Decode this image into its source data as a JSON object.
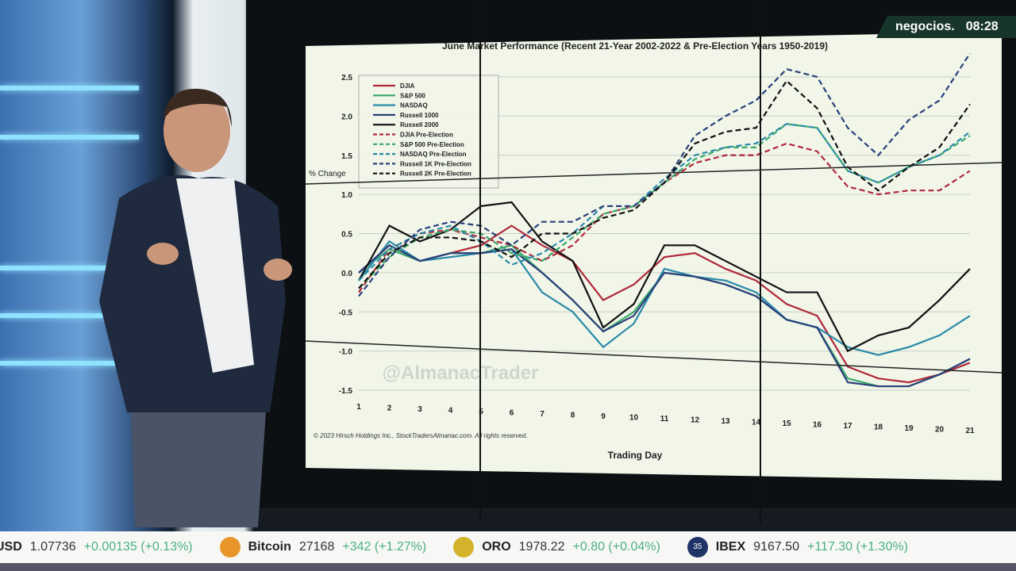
{
  "broadcast": {
    "channel": "negocios.",
    "time": "08:28"
  },
  "ticker": [
    {
      "name": "USD",
      "value": "1.07736",
      "change": "+0.00135 (+0.13%)",
      "icon": "currency-icon"
    },
    {
      "name": "Bitcoin",
      "value": "27168",
      "change": "+342 (+1.27%)",
      "icon": "bitcoin-icon",
      "color": "#e8962a"
    },
    {
      "name": "ORO",
      "value": "1978.22",
      "change": "+0.80 (+0.04%)",
      "icon": "gold-icon",
      "color": "#d4b32c"
    },
    {
      "name": "IBEX",
      "value": "9167.50",
      "change": "+117.30 (+1.30%)",
      "icon": "ibex-icon",
      "badge": "35",
      "color": "#1f3466"
    }
  ],
  "chart_data": {
    "type": "line",
    "title": "June Market Performance (Recent 21-Year 2002-2022 & Pre-Election Years 1950-2019)",
    "xlabel": "Trading Day",
    "ylabel": "% Change",
    "watermark": "@AlmanacTrader",
    "footer": "© 2023 Hirsch Holdings Inc., StockTradersAlmanac.com. All rights reserved.",
    "x": [
      1,
      2,
      3,
      4,
      5,
      6,
      7,
      8,
      9,
      10,
      11,
      12,
      13,
      14,
      15,
      16,
      17,
      18,
      19,
      20,
      21
    ],
    "ylim": [
      -1.5,
      2.5
    ],
    "yticks": [
      "2.5",
      "2.0",
      "1.5",
      "1.0",
      "0.5",
      "0.0",
      "-0.5",
      "-1.0",
      "-1.5"
    ],
    "grid": true,
    "legend": "top-left",
    "series": [
      {
        "name": "DJIA",
        "color": "#b0283a",
        "dash": false,
        "values": [
          0.0,
          0.35,
          0.15,
          0.25,
          0.35,
          0.6,
          0.35,
          0.15,
          -0.35,
          -0.15,
          0.2,
          0.25,
          0.05,
          -0.1,
          -0.4,
          -0.55,
          -1.2,
          -1.35,
          -1.4,
          -1.3,
          -1.15
        ]
      },
      {
        "name": "S&P 500",
        "color": "#3aa86a",
        "dash": false,
        "values": [
          0.0,
          0.3,
          0.15,
          0.25,
          0.25,
          0.35,
          0.0,
          -0.35,
          -0.75,
          -0.5,
          0.0,
          -0.05,
          -0.15,
          -0.3,
          -0.6,
          -0.7,
          -1.35,
          -1.45,
          -1.45,
          -1.3,
          -1.1
        ]
      },
      {
        "name": "NASDAQ",
        "color": "#2a8aa8",
        "dash": false,
        "values": [
          -0.1,
          0.4,
          0.15,
          0.2,
          0.25,
          0.3,
          -0.25,
          -0.5,
          -0.95,
          -0.65,
          0.05,
          -0.05,
          -0.1,
          -0.25,
          -0.6,
          -0.7,
          -0.95,
          -1.05,
          -0.95,
          -0.8,
          -0.55
        ]
      },
      {
        "name": "Russell 1000",
        "color": "#2a3f7a",
        "dash": false,
        "values": [
          0.0,
          0.35,
          0.15,
          0.25,
          0.25,
          0.3,
          0.0,
          -0.35,
          -0.75,
          -0.55,
          0.0,
          -0.05,
          -0.15,
          -0.3,
          -0.6,
          -0.7,
          -1.4,
          -1.45,
          -1.45,
          -1.3,
          -1.1
        ]
      },
      {
        "name": "Russell 2000",
        "color": "#111111",
        "dash": false,
        "values": [
          -0.1,
          0.6,
          0.4,
          0.55,
          0.85,
          0.9,
          0.4,
          0.15,
          -0.7,
          -0.4,
          0.35,
          0.35,
          0.15,
          -0.05,
          -0.25,
          -0.25,
          -1.0,
          -0.8,
          -0.7,
          -0.35,
          0.05
        ]
      },
      {
        "name": "DJIA Pre-Election",
        "color": "#b0283a",
        "dash": true,
        "values": [
          -0.25,
          0.3,
          0.5,
          0.55,
          0.45,
          0.35,
          0.15,
          0.35,
          0.75,
          0.85,
          1.15,
          1.4,
          1.5,
          1.5,
          1.65,
          1.55,
          1.1,
          1.0,
          1.05,
          1.05,
          1.3
        ]
      },
      {
        "name": "S&P 500 Pre-Election",
        "color": "#3aa86a",
        "dash": true,
        "values": [
          -0.2,
          0.2,
          0.45,
          0.55,
          0.5,
          0.25,
          0.15,
          0.45,
          0.75,
          0.85,
          1.15,
          1.45,
          1.6,
          1.6,
          1.9,
          1.85,
          1.3,
          1.15,
          1.35,
          1.5,
          1.75
        ]
      },
      {
        "name": "NASDAQ Pre-Election",
        "color": "#2a8aa8",
        "dash": true,
        "values": [
          -0.1,
          0.3,
          0.5,
          0.6,
          0.4,
          0.1,
          0.25,
          0.5,
          0.85,
          0.85,
          1.2,
          1.5,
          1.6,
          1.65,
          1.9,
          1.85,
          1.3,
          1.15,
          1.35,
          1.5,
          1.8
        ]
      },
      {
        "name": "Russell 1K Pre-Election",
        "color": "#2a3f7a",
        "dash": true,
        "values": [
          -0.3,
          0.2,
          0.55,
          0.65,
          0.6,
          0.35,
          0.65,
          0.65,
          0.85,
          0.85,
          1.15,
          1.75,
          2.0,
          2.2,
          2.6,
          2.5,
          1.85,
          1.5,
          1.95,
          2.2,
          2.8
        ]
      },
      {
        "name": "Russell 2K Pre-Election",
        "color": "#111111",
        "dash": true,
        "values": [
          -0.2,
          0.25,
          0.45,
          0.45,
          0.4,
          0.2,
          0.5,
          0.5,
          0.7,
          0.8,
          1.15,
          1.65,
          1.8,
          1.85,
          2.45,
          2.1,
          1.35,
          1.05,
          1.35,
          1.6,
          2.15
        ]
      }
    ]
  }
}
